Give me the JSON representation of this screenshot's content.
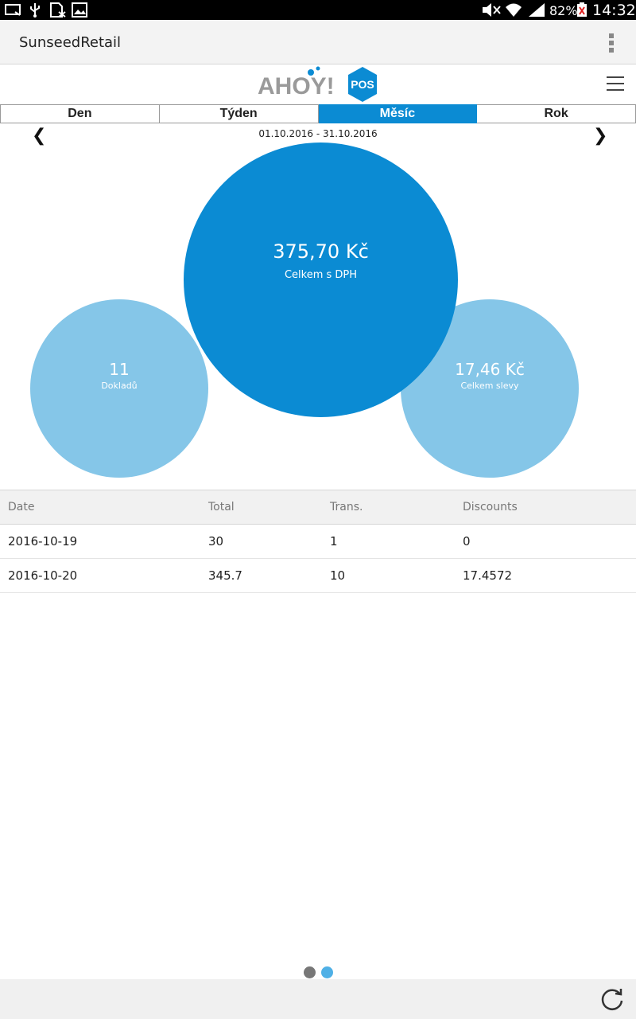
{
  "status_bar": {
    "battery": "82%",
    "time": "14:32",
    "icons": [
      "cast-icon",
      "usb-icon",
      "sim-icon",
      "image-icon",
      "mute-icon",
      "wifi-icon",
      "signal-icon",
      "battery-icon"
    ]
  },
  "action_bar": {
    "title": "SunseedRetail"
  },
  "logo": {
    "text": "AHOY!",
    "badge": "POS"
  },
  "tabs": [
    {
      "label": "Den"
    },
    {
      "label": "Týden"
    },
    {
      "label": "Měsíc",
      "active": true
    },
    {
      "label": "Rok"
    }
  ],
  "period": {
    "prev": "❮",
    "next": "❯",
    "range": "01.10.2016 - 31.10.2016"
  },
  "summary": {
    "total_value": "375,70 Kč",
    "total_label": "Celkem s DPH",
    "docs_value": "11",
    "docs_label": "Dokladů",
    "discount_value": "17,46 Kč",
    "discount_label": "Celkem slevy"
  },
  "table": {
    "headers": [
      "Date",
      "Total",
      "Trans.",
      "Discounts"
    ],
    "rows": [
      [
        "2016-10-19",
        "30",
        "1",
        "0"
      ],
      [
        "2016-10-20",
        "345.7",
        "10",
        "17.4572"
      ]
    ]
  },
  "colors": {
    "accent": "#0b8bd3",
    "light_accent": "#85c6e8"
  }
}
